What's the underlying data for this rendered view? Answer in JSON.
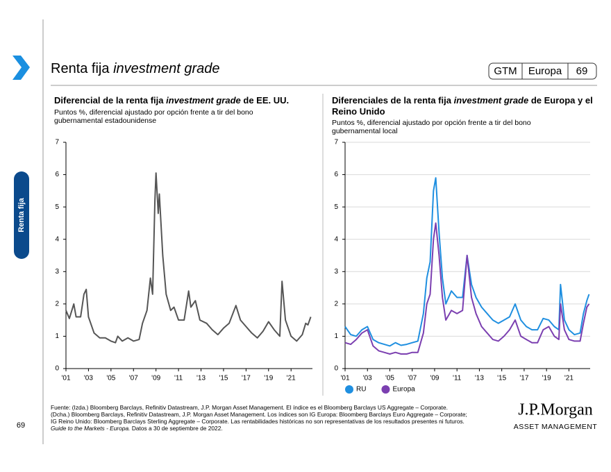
{
  "header": {
    "title": [
      "Renta fija ",
      "investment grade"
    ],
    "badge": [
      "GTM",
      "Europa",
      "69"
    ]
  },
  "sidebar_label": "Renta fija",
  "page_number": "69",
  "chart_data": [
    {
      "type": "line",
      "title": [
        "Diferencial de la renta fija ",
        "investment grade",
        " de EE. UU."
      ],
      "subtitle": [
        "Puntos %, diferencial ajustado por opción frente a tir del bono",
        "gubernamental estadounidense"
      ],
      "x": [
        2001,
        2001.3,
        2001.7,
        2001.9,
        2002.3,
        2002.6,
        2002.8,
        2003,
        2003.5,
        2004,
        2004.5,
        2005,
        2005.4,
        2005.6,
        2006,
        2006.5,
        2007,
        2007.5,
        2007.8,
        2008.2,
        2008.5,
        2008.7,
        2008.9,
        2009,
        2009.2,
        2009.3,
        2009.6,
        2009.9,
        2010.3,
        2010.6,
        2011,
        2011.5,
        2011.9,
        2012.1,
        2012.5,
        2012.9,
        2013.5,
        2014,
        2014.5,
        2015,
        2015.5,
        2016.1,
        2016.5,
        2017,
        2017.5,
        2018,
        2018.5,
        2019,
        2019.5,
        2020,
        2020.2,
        2020.5,
        2021,
        2021.5,
        2022,
        2022.3,
        2022.5,
        2022.75
      ],
      "values": [
        1.8,
        1.55,
        2.0,
        1.6,
        1.6,
        2.3,
        2.45,
        1.6,
        1.1,
        0.95,
        0.95,
        0.85,
        0.8,
        1.0,
        0.85,
        0.95,
        0.85,
        0.9,
        1.4,
        1.8,
        2.8,
        2.3,
        5.2,
        6.05,
        4.8,
        5.4,
        3.5,
        2.3,
        1.8,
        1.9,
        1.5,
        1.5,
        2.4,
        1.9,
        2.1,
        1.5,
        1.4,
        1.2,
        1.05,
        1.25,
        1.4,
        1.95,
        1.5,
        1.3,
        1.1,
        0.95,
        1.15,
        1.45,
        1.2,
        1.0,
        2.7,
        1.5,
        1.0,
        0.85,
        1.05,
        1.4,
        1.35,
        1.6
      ],
      "color": "#555555",
      "xlim": [
        2001,
        2022.9
      ],
      "xticks": [
        {
          "value": 2001,
          "label": "'01"
        },
        {
          "value": 2003,
          "label": "'03"
        },
        {
          "value": 2005,
          "label": "'05"
        },
        {
          "value": 2007,
          "label": "'07"
        },
        {
          "value": 2009,
          "label": "'09"
        },
        {
          "value": 2011,
          "label": "'11"
        },
        {
          "value": 2013,
          "label": "'13"
        },
        {
          "value": 2015,
          "label": "'15"
        },
        {
          "value": 2017,
          "label": "'17"
        },
        {
          "value": 2019,
          "label": "'19"
        },
        {
          "value": 2021,
          "label": "'21"
        }
      ],
      "ylim": [
        0,
        7
      ],
      "yticks": [
        0,
        1,
        2,
        3,
        4,
        5,
        6,
        7
      ],
      "grid": false
    },
    {
      "type": "line",
      "title": [
        "Diferenciales de la renta fija ",
        "investment grade",
        " de Europa y el Reino Unido"
      ],
      "subtitle": [
        "Puntos %, diferencial ajustado por opción frente a tir del bono",
        "gubernamental local"
      ],
      "x": [
        2001,
        2001.5,
        2002,
        2002.5,
        2003,
        2003.5,
        2004,
        2004.5,
        2005,
        2005.5,
        2006,
        2006.5,
        2007,
        2007.5,
        2008,
        2008.3,
        2008.6,
        2008.9,
        2009.1,
        2009.4,
        2009.7,
        2010,
        2010.5,
        2011,
        2011.5,
        2011.9,
        2012.3,
        2012.7,
        2013.2,
        2013.7,
        2014.2,
        2014.7,
        2015.2,
        2015.7,
        2016.2,
        2016.7,
        2017.2,
        2017.7,
        2018.2,
        2018.7,
        2019.2,
        2019.7,
        2020.1,
        2020.25,
        2020.6,
        2021,
        2021.5,
        2022,
        2022.3,
        2022.6,
        2022.8
      ],
      "series": [
        {
          "name": "RU",
          "color": "#1f8fe0",
          "values": [
            1.3,
            1.05,
            1.0,
            1.2,
            1.3,
            0.9,
            0.8,
            0.75,
            0.7,
            0.8,
            0.72,
            0.75,
            0.8,
            0.85,
            1.7,
            2.8,
            3.3,
            5.5,
            5.9,
            4.2,
            2.8,
            2.0,
            2.4,
            2.2,
            2.2,
            3.5,
            2.6,
            2.2,
            1.9,
            1.7,
            1.5,
            1.4,
            1.5,
            1.6,
            2.0,
            1.5,
            1.3,
            1.2,
            1.2,
            1.55,
            1.5,
            1.3,
            1.2,
            2.6,
            1.5,
            1.2,
            1.05,
            1.1,
            1.7,
            2.1,
            2.3
          ]
        },
        {
          "name": "Europa",
          "color": "#7b3fb0",
          "values": [
            0.8,
            0.75,
            0.9,
            1.1,
            1.2,
            0.7,
            0.55,
            0.5,
            0.45,
            0.5,
            0.45,
            0.45,
            0.5,
            0.5,
            1.1,
            2.0,
            2.3,
            4.0,
            4.5,
            3.5,
            2.2,
            1.5,
            1.8,
            1.7,
            1.8,
            3.5,
            2.2,
            1.7,
            1.3,
            1.1,
            0.9,
            0.85,
            1.0,
            1.2,
            1.5,
            1.0,
            0.9,
            0.8,
            0.8,
            1.2,
            1.3,
            1.0,
            0.9,
            2.0,
            1.2,
            0.9,
            0.85,
            0.85,
            1.4,
            1.9,
            2.0
          ]
        }
      ],
      "xlim": [
        2001,
        2022.9
      ],
      "xticks": [
        {
          "value": 2001,
          "label": "'01"
        },
        {
          "value": 2003,
          "label": "'03"
        },
        {
          "value": 2005,
          "label": "'05"
        },
        {
          "value": 2007,
          "label": "'07"
        },
        {
          "value": 2009,
          "label": "'09"
        },
        {
          "value": 2011,
          "label": "'11"
        },
        {
          "value": 2013,
          "label": "'13"
        },
        {
          "value": 2015,
          "label": "'15"
        },
        {
          "value": 2017,
          "label": "'17"
        },
        {
          "value": 2019,
          "label": "'19"
        },
        {
          "value": 2021,
          "label": "'21"
        }
      ],
      "ylim": [
        0,
        7
      ],
      "yticks": [
        0,
        1,
        2,
        3,
        4,
        5,
        6,
        7
      ],
      "grid": true
    }
  ],
  "footnote": [
    "Fuente: (Izda.) Bloomberg Barclays, Refinitiv Datastream, J.P. Morgan Asset Management. El índice es el Bloomberg Barclays US Aggregate – Corporate.",
    "(Dcha.) Bloomberg Barclays, Refinitiv Datastream, J.P. Morgan Asset Management. Los índices son IG Europa: Bloomberg Barclays Euro Aggregate – Corporate;",
    "IG Reino Unido: Bloomberg Barclays Sterling Aggregate – Corporate. Las rentabilidades históricas no son representativas de los resultados presentes ni futuros."
  ],
  "footnote_last": [
    "Guide to the Markets - Europa.",
    " Datos a 30 de septiembre de 2022."
  ],
  "logo": {
    "name": "J.P.Morgan",
    "sub": "ASSET MANAGEMENT"
  }
}
